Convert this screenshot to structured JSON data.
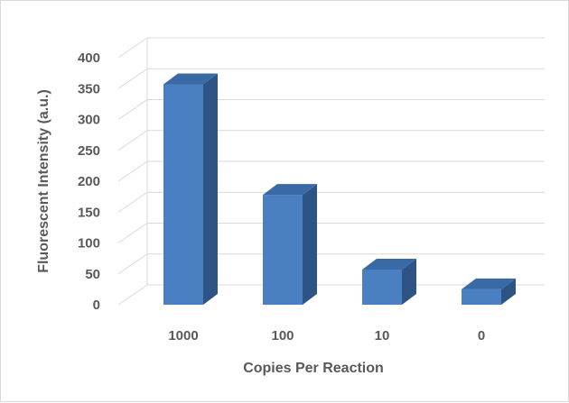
{
  "chart_data": {
    "type": "bar",
    "title": "",
    "xlabel": "Copies Per Reaction",
    "ylabel": "Fluorescent Intensity (a.u.)",
    "categories": [
      "1000",
      "100",
      "10",
      "0"
    ],
    "values": [
      357,
      178,
      57,
      25
    ],
    "ylim": [
      0,
      400
    ],
    "yticks": [
      0,
      50,
      100,
      150,
      200,
      250,
      300,
      350,
      400
    ],
    "grid": true,
    "legend": "none",
    "style": "3d-column",
    "colors": {
      "bar_front": "#4a7fc1",
      "bar_side": "#2e5486",
      "bar_top": "#3a6aa6",
      "grid": "#d9d9d9",
      "text": "#595959"
    }
  }
}
